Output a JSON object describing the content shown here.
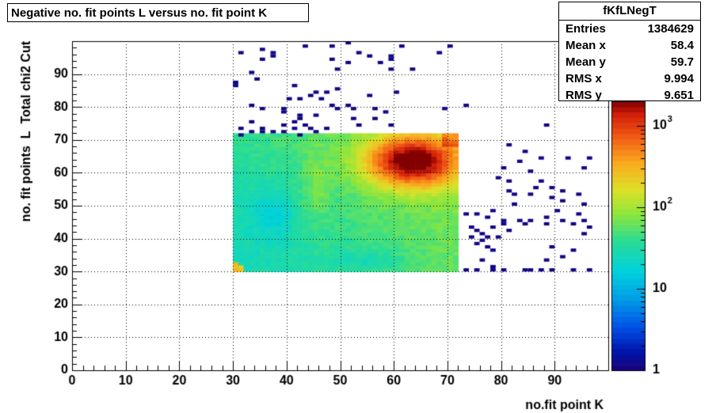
{
  "title": "Negative no. fit points L versus no. fit point K",
  "stats": {
    "name": "fKfLNegT",
    "rows": [
      {
        "label": "Entries",
        "value": "1384629"
      },
      {
        "label": "Mean x",
        "value": "58.4"
      },
      {
        "label": "Mean y",
        "value": "59.7"
      },
      {
        "label": "RMS x",
        "value": "9.994"
      },
      {
        "label": "RMS y",
        "value": "9.651"
      }
    ]
  },
  "chart_data": {
    "type": "heatmap",
    "title": "Negative no. fit points L versus no. fit point K",
    "xlabel": "no.fit point K",
    "ylabel": "no. fit points  L  Total chi2 Cut",
    "xlim": [
      0,
      100
    ],
    "ylim": [
      0,
      100
    ],
    "xticks": [
      0,
      10,
      20,
      30,
      40,
      50,
      60,
      70,
      80,
      90
    ],
    "yticks": [
      0,
      10,
      20,
      30,
      40,
      50,
      60,
      70,
      80,
      90
    ],
    "grid": true,
    "colorscale": "log",
    "zlim": [
      1,
      2000
    ],
    "zticks": [
      {
        "value": 1,
        "label": "1"
      },
      {
        "value": 10,
        "label": "10"
      },
      {
        "value": 100,
        "label": "10^2"
      },
      {
        "value": 1000,
        "label": "10^3"
      }
    ],
    "dense_region": {
      "x": [
        30,
        72
      ],
      "y": [
        30,
        72
      ]
    },
    "hot_spot": [
      63,
      63
    ],
    "sparse_points": [
      [
        51,
        99
      ],
      [
        70,
        98
      ],
      [
        48,
        98
      ],
      [
        61,
        98
      ],
      [
        43,
        98
      ],
      [
        37,
        96
      ],
      [
        35,
        97
      ],
      [
        68,
        96
      ],
      [
        53,
        96
      ],
      [
        31,
        96
      ],
      [
        37,
        95
      ],
      [
        59,
        95
      ],
      [
        48,
        94
      ],
      [
        55,
        95
      ],
      [
        59,
        94
      ],
      [
        57,
        93
      ],
      [
        35,
        94
      ],
      [
        51,
        93
      ],
      [
        49,
        91
      ],
      [
        59,
        91
      ],
      [
        63,
        91
      ],
      [
        30,
        87
      ],
      [
        33,
        90
      ],
      [
        34,
        88
      ],
      [
        30,
        86
      ],
      [
        41,
        86
      ],
      [
        45,
        84
      ],
      [
        44,
        83
      ],
      [
        42,
        82
      ],
      [
        47,
        84
      ],
      [
        49,
        85
      ],
      [
        60,
        84
      ],
      [
        55,
        83
      ],
      [
        33,
        80
      ],
      [
        39,
        78
      ],
      [
        46,
        82
      ],
      [
        40,
        82
      ],
      [
        35,
        79
      ],
      [
        52,
        79
      ],
      [
        56,
        79
      ],
      [
        58,
        78
      ],
      [
        48,
        80
      ],
      [
        49,
        79
      ],
      [
        51,
        80
      ],
      [
        42,
        77
      ],
      [
        39,
        79
      ],
      [
        69,
        79
      ],
      [
        73,
        80
      ],
      [
        45,
        77
      ],
      [
        41,
        73
      ],
      [
        53,
        74
      ],
      [
        33,
        75
      ],
      [
        39,
        74
      ],
      [
        41,
        75
      ],
      [
        44,
        73
      ],
      [
        35,
        73
      ],
      [
        31,
        71
      ],
      [
        33,
        72
      ],
      [
        35,
        72
      ],
      [
        37,
        72
      ],
      [
        39,
        72
      ],
      [
        42,
        71
      ],
      [
        45,
        72
      ],
      [
        47,
        73
      ],
      [
        42,
        76
      ],
      [
        31,
        73
      ],
      [
        43,
        74
      ],
      [
        52,
        76
      ],
      [
        56,
        76
      ],
      [
        59,
        74
      ],
      [
        88,
        74
      ],
      [
        81,
        68
      ],
      [
        84,
        66
      ],
      [
        83,
        63
      ],
      [
        87,
        64
      ],
      [
        80,
        61
      ],
      [
        85,
        60
      ],
      [
        92,
        64
      ],
      [
        95,
        61
      ],
      [
        96,
        64
      ],
      [
        79,
        58
      ],
      [
        81,
        57
      ],
      [
        81,
        54
      ],
      [
        82,
        53
      ],
      [
        85,
        53
      ],
      [
        87,
        57
      ],
      [
        86,
        55
      ],
      [
        89,
        55
      ],
      [
        91,
        54
      ],
      [
        89,
        52
      ],
      [
        91,
        51
      ],
      [
        94,
        53
      ],
      [
        91,
        45
      ],
      [
        94,
        47
      ],
      [
        95,
        45
      ],
      [
        88,
        46
      ],
      [
        95,
        50
      ],
      [
        90,
        48
      ],
      [
        82,
        50
      ],
      [
        78,
        48
      ],
      [
        73,
        47
      ],
      [
        75,
        47
      ],
      [
        77,
        46
      ],
      [
        80,
        45
      ],
      [
        83,
        45
      ],
      [
        78,
        43
      ],
      [
        80,
        44
      ],
      [
        81,
        42
      ],
      [
        79,
        40
      ],
      [
        85,
        45
      ],
      [
        84,
        44
      ],
      [
        88,
        44
      ],
      [
        93,
        44
      ],
      [
        95,
        41
      ],
      [
        96,
        43
      ],
      [
        74,
        43
      ],
      [
        75,
        42
      ],
      [
        76,
        41
      ],
      [
        77,
        40
      ],
      [
        75,
        38
      ],
      [
        77,
        37
      ],
      [
        78,
        36
      ],
      [
        76,
        33
      ],
      [
        78,
        31
      ],
      [
        80,
        30
      ],
      [
        84,
        30
      ],
      [
        85,
        30
      ],
      [
        87,
        30
      ],
      [
        89,
        30
      ],
      [
        93,
        30
      ],
      [
        96,
        30
      ],
      [
        73,
        30
      ],
      [
        75,
        30
      ],
      [
        78,
        30
      ],
      [
        91,
        34
      ],
      [
        88,
        33
      ],
      [
        74,
        40
      ],
      [
        76,
        39
      ],
      [
        89,
        37
      ],
      [
        93,
        36
      ]
    ]
  }
}
